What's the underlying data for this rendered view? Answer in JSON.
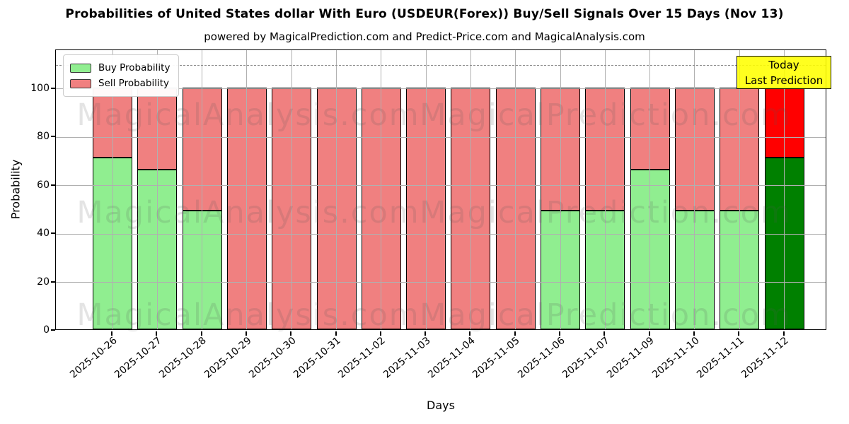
{
  "title": "Probabilities of United States dollar With Euro (USDEUR(Forex)) Buy/Sell Signals Over 15 Days (Nov 13)",
  "subtitle": "powered by MagicalPrediction.com and Predict-Price.com and MagicalAnalysis.com",
  "legend": {
    "items": [
      {
        "label": "Buy Probability",
        "color": "#90EE90"
      },
      {
        "label": "Sell Probability",
        "color": "#F08080"
      }
    ]
  },
  "annotation": {
    "line1": "Today",
    "line2": "Last Prediction"
  },
  "axes": {
    "ylabel": "Probability",
    "xlabel": "Days",
    "yticks": [
      0,
      20,
      40,
      60,
      80,
      100
    ],
    "ylim": [
      0,
      116
    ],
    "dashed_line_y": 110,
    "grid": true
  },
  "colors": {
    "buy": "#90EE90",
    "sell": "#F08080",
    "today_buy": "#008000",
    "today_sell": "#FF0000",
    "annotation_bg": "#FFFF00",
    "grid": "#b0b0b0",
    "bar_edge": "#000000"
  },
  "watermarks": [
    "MagicalAnalysis.com",
    "MagicalPrediction.com"
  ],
  "chart_data": {
    "type": "bar",
    "stacked": true,
    "categories": [
      "2025-10-26",
      "2025-10-27",
      "2025-10-28",
      "2025-10-29",
      "2025-10-30",
      "2025-10-31",
      "2025-11-02",
      "2025-11-03",
      "2025-11-04",
      "2025-11-05",
      "2025-11-06",
      "2025-11-07",
      "2025-11-09",
      "2025-11-10",
      "2025-11-11",
      "2025-11-12"
    ],
    "series": [
      {
        "name": "Buy Probability",
        "values": [
          71,
          66,
          49,
          0,
          0,
          0,
          0,
          0,
          0,
          0,
          49,
          49,
          66,
          49,
          49,
          71
        ]
      },
      {
        "name": "Sell Probability",
        "values": [
          29,
          34,
          51,
          100,
          100,
          100,
          100,
          100,
          100,
          100,
          51,
          51,
          34,
          51,
          51,
          29
        ]
      }
    ],
    "today_index": 15,
    "title": "Probabilities of United States dollar With Euro (USDEUR(Forex)) Buy/Sell Signals Over 15 Days (Nov 13)",
    "xlabel": "Days",
    "ylabel": "Probability",
    "ylim": [
      0,
      116
    ],
    "legend_position": "upper left"
  }
}
